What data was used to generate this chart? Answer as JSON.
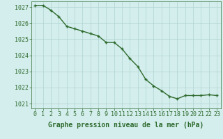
{
  "x": [
    0,
    1,
    2,
    3,
    4,
    5,
    6,
    7,
    8,
    9,
    10,
    11,
    12,
    13,
    14,
    15,
    16,
    17,
    18,
    19,
    20,
    21,
    22,
    23
  ],
  "y": [
    1027.1,
    1027.1,
    1026.8,
    1026.4,
    1025.8,
    1025.65,
    1025.5,
    1025.35,
    1025.2,
    1024.8,
    1024.8,
    1024.4,
    1023.8,
    1023.3,
    1022.5,
    1022.1,
    1021.8,
    1021.45,
    1021.3,
    1021.5,
    1021.5,
    1021.5,
    1021.55,
    1021.5
  ],
  "line_color": "#2d6a2d",
  "marker": "+",
  "marker_color": "#2d6a2d",
  "bg_color": "#d4eeed",
  "grid_color": "#b0d4d0",
  "xlabel": "Graphe pression niveau de la mer (hPa)",
  "xlabel_color": "#2d6a2d",
  "tick_color": "#2d6a2d",
  "ylim": [
    1020.7,
    1027.35
  ],
  "xlim": [
    -0.5,
    23.5
  ],
  "yticks": [
    1021,
    1022,
    1023,
    1024,
    1025,
    1026,
    1027
  ],
  "xticks": [
    0,
    1,
    2,
    3,
    4,
    5,
    6,
    7,
    8,
    9,
    10,
    11,
    12,
    13,
    14,
    15,
    16,
    17,
    18,
    19,
    20,
    21,
    22,
    23
  ],
  "xtick_labels": [
    "0",
    "1",
    "2",
    "3",
    "4",
    "5",
    "6",
    "7",
    "8",
    "9",
    "10",
    "11",
    "12",
    "13",
    "14",
    "15",
    "16",
    "17",
    "18",
    "19",
    "20",
    "21",
    "22",
    "23"
  ],
  "marker_size": 3,
  "line_width": 1.0,
  "font_size": 6,
  "xlabel_fontsize": 7,
  "xlabel_bold": true
}
